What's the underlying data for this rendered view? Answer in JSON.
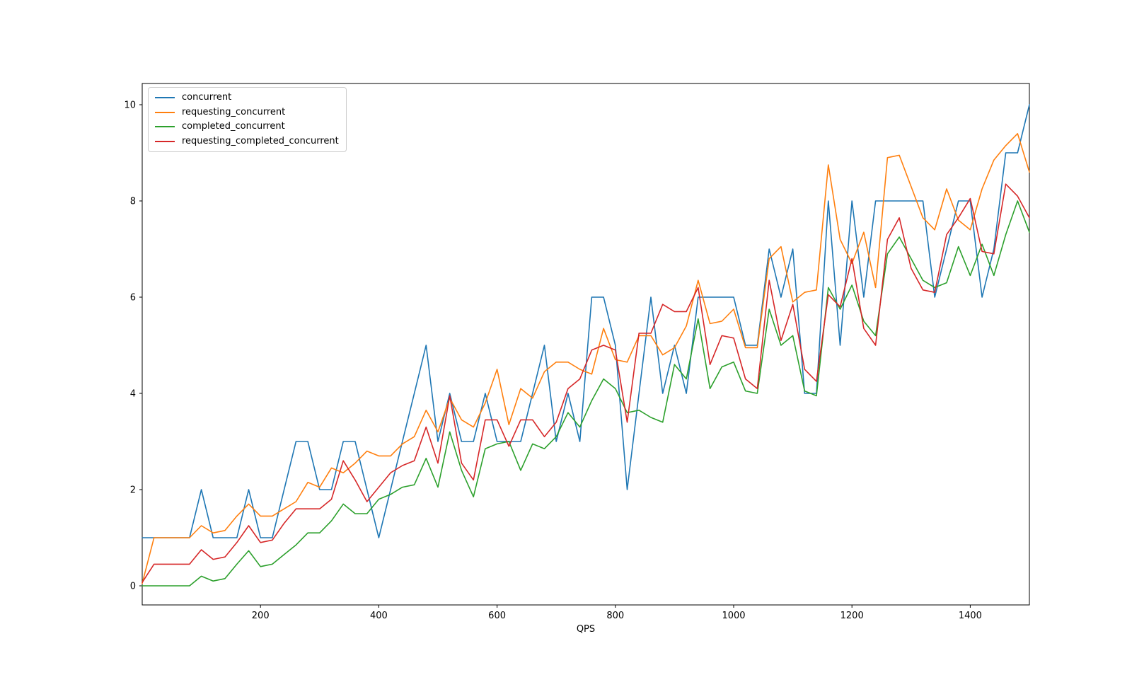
{
  "figure": {
    "background": "#ffffff"
  },
  "axes": {
    "xlabel": "QPS",
    "xticks": [
      200,
      400,
      600,
      800,
      1000,
      1200,
      1400
    ],
    "yticks": [
      0,
      2,
      4,
      6,
      8,
      10
    ],
    "xlim": [
      0,
      1500
    ],
    "ylim": [
      -0.4,
      10.45
    ],
    "grid": false,
    "spine_color": "#000000",
    "tick_label_color": "#000000"
  },
  "chart_data": {
    "type": "line",
    "title": "",
    "xlabel": "QPS",
    "ylabel": "",
    "xlim": [
      0,
      1500
    ],
    "ylim": [
      -0.4,
      10.45
    ],
    "grid": false,
    "legend_position": "upper left",
    "x": [
      0,
      20,
      40,
      60,
      80,
      100,
      120,
      140,
      160,
      180,
      200,
      220,
      240,
      260,
      280,
      300,
      320,
      340,
      360,
      380,
      400,
      420,
      440,
      460,
      480,
      500,
      520,
      540,
      560,
      580,
      600,
      620,
      640,
      660,
      680,
      700,
      720,
      740,
      760,
      780,
      800,
      820,
      840,
      860,
      880,
      900,
      920,
      940,
      960,
      980,
      1000,
      1020,
      1040,
      1060,
      1080,
      1100,
      1120,
      1140,
      1160,
      1180,
      1200,
      1220,
      1240,
      1260,
      1280,
      1300,
      1320,
      1340,
      1360,
      1380,
      1400,
      1420,
      1440,
      1460,
      1480,
      1500
    ],
    "series": [
      {
        "name": "concurrent",
        "color": "#1f77b4",
        "values": [
          1,
          1,
          1,
          1,
          1,
          2,
          1,
          1,
          1,
          2,
          1,
          1,
          2,
          3,
          3,
          2,
          2,
          3,
          3,
          2,
          1,
          2,
          3,
          4,
          5,
          3,
          4,
          3,
          3,
          4,
          3,
          3,
          3,
          4,
          5,
          3,
          4,
          3,
          6,
          6,
          5,
          2,
          4,
          6,
          4,
          5,
          4,
          6,
          6,
          6,
          6,
          5,
          5,
          7,
          6,
          7,
          4,
          4,
          8,
          5,
          8,
          6,
          8,
          8,
          8,
          8,
          8,
          6,
          7,
          8,
          8,
          6,
          7,
          9,
          9,
          10
        ]
      },
      {
        "name": "requesting_concurrent",
        "color": "#ff7f0e",
        "values": [
          0.05,
          1,
          1,
          1,
          1,
          1.25,
          1.1,
          1.15,
          1.45,
          1.7,
          1.45,
          1.45,
          1.6,
          1.75,
          2.15,
          2.05,
          2.45,
          2.35,
          2.55,
          2.8,
          2.7,
          2.7,
          2.95,
          3.1,
          3.65,
          3.2,
          3.9,
          3.45,
          3.3,
          3.8,
          4.5,
          3.35,
          4.1,
          3.9,
          4.45,
          4.65,
          4.65,
          4.5,
          4.4,
          5.35,
          4.7,
          4.65,
          5.2,
          5.2,
          4.8,
          4.95,
          5.4,
          6.35,
          5.45,
          5.5,
          5.75,
          4.95,
          4.95,
          6.8,
          7.05,
          5.9,
          6.1,
          6.15,
          8.75,
          7.2,
          6.7,
          7.35,
          6.2,
          8.9,
          8.95,
          8.3,
          7.65,
          7.4,
          8.25,
          7.6,
          7.4,
          8.25,
          8.85,
          9.15,
          9.4,
          8.6
        ]
      },
      {
        "name": "completed_concurrent",
        "color": "#2ca02c",
        "values": [
          0,
          0,
          0,
          0,
          0,
          0.2,
          0.1,
          0.15,
          0.45,
          0.73,
          0.4,
          0.45,
          0.65,
          0.85,
          1.1,
          1.1,
          1.35,
          1.7,
          1.5,
          1.5,
          1.8,
          1.9,
          2.05,
          2.1,
          2.65,
          2.05,
          3.2,
          2.4,
          1.85,
          2.85,
          2.95,
          3.0,
          2.4,
          2.95,
          2.85,
          3.1,
          3.6,
          3.3,
          3.85,
          4.3,
          4.1,
          3.6,
          3.65,
          3.5,
          3.4,
          4.6,
          4.3,
          5.55,
          4.1,
          4.55,
          4.65,
          4.05,
          4.0,
          5.75,
          5.0,
          5.2,
          4.05,
          3.95,
          6.2,
          5.75,
          6.25,
          5.5,
          5.2,
          6.9,
          7.25,
          6.8,
          6.35,
          6.2,
          6.3,
          7.05,
          6.45,
          7.1,
          6.45,
          7.3,
          8.0,
          7.35
        ]
      },
      {
        "name": "requesting_completed_concurrent",
        "color": "#d62728",
        "values": [
          0.07,
          0.45,
          0.45,
          0.45,
          0.45,
          0.75,
          0.55,
          0.6,
          0.9,
          1.25,
          0.9,
          0.95,
          1.3,
          1.6,
          1.6,
          1.6,
          1.8,
          2.6,
          2.2,
          1.75,
          2.05,
          2.35,
          2.5,
          2.6,
          3.3,
          2.55,
          3.95,
          2.55,
          2.2,
          3.45,
          3.45,
          2.9,
          3.45,
          3.45,
          3.1,
          3.4,
          4.1,
          4.3,
          4.9,
          5.0,
          4.9,
          3.4,
          5.25,
          5.25,
          5.85,
          5.7,
          5.7,
          6.2,
          4.6,
          5.2,
          5.15,
          4.3,
          4.1,
          6.35,
          5.1,
          5.85,
          4.5,
          4.25,
          6.05,
          5.8,
          6.8,
          5.35,
          5.0,
          7.2,
          7.65,
          6.6,
          6.15,
          6.1,
          7.3,
          7.65,
          8.05,
          6.95,
          6.9,
          8.35,
          8.1,
          7.65
        ]
      }
    ]
  }
}
